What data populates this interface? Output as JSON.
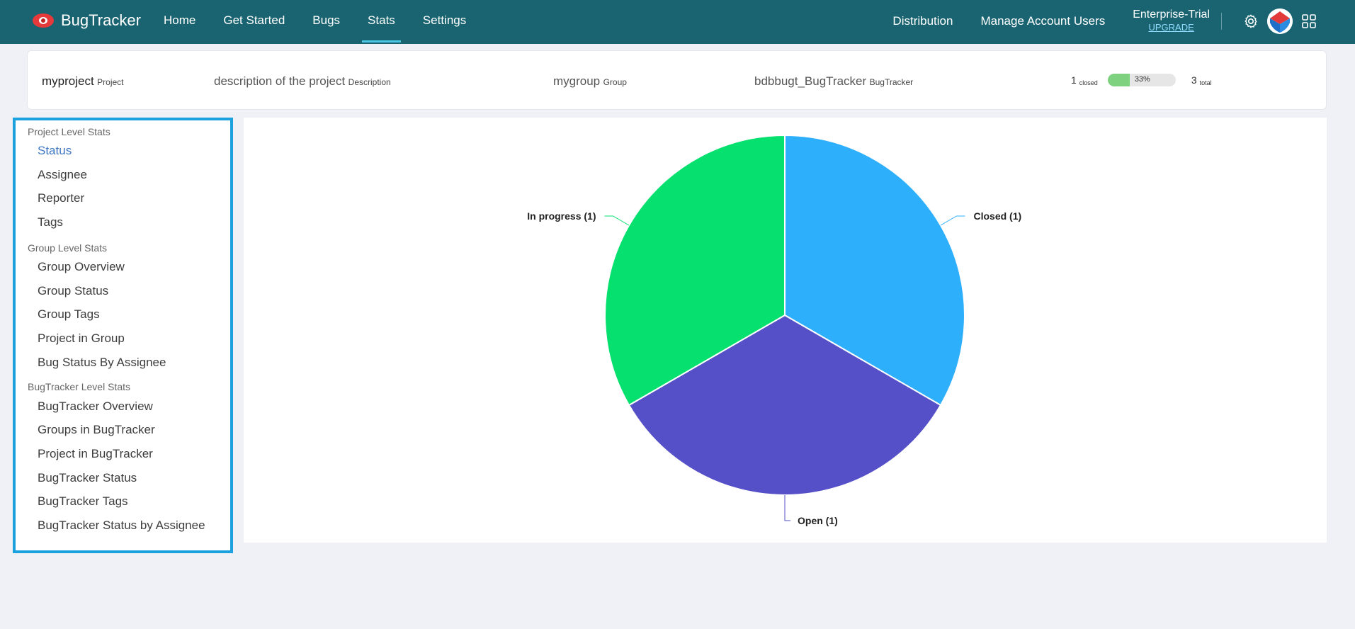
{
  "brand": {
    "name": "BugTracker"
  },
  "nav": {
    "items": [
      "Home",
      "Get Started",
      "Bugs",
      "Stats",
      "Settings"
    ],
    "active": "Stats"
  },
  "nav_right": {
    "distribution": "Distribution",
    "manage_users": "Manage Account Users",
    "plan_name": "Enterprise-Trial",
    "upgrade": "UPGRADE"
  },
  "project_info": {
    "project_name": "myproject",
    "project_label": "Project",
    "description": "description of the project",
    "description_label": "Description",
    "group": "mygroup",
    "group_label": "Group",
    "bugtracker": "bdbbugt_BugTracker",
    "bugtracker_label": "BugTracker",
    "closed_count": "1",
    "closed_label": "closed",
    "progress_percent": "33%",
    "progress_fraction": 0.33,
    "total_count": "3",
    "total_label": "total"
  },
  "sidebar": {
    "sections": [
      {
        "title": "Project Level Stats",
        "items": [
          "Status",
          "Assignee",
          "Reporter",
          "Tags"
        ]
      },
      {
        "title": "Group Level Stats",
        "items": [
          "Group Overview",
          "Group Status",
          "Group Tags",
          "Project in Group",
          "Bug Status By Assignee"
        ]
      },
      {
        "title": "BugTracker Level Stats",
        "items": [
          "BugTracker Overview",
          "Groups in BugTracker",
          "Project in BugTracker",
          "BugTracker Status",
          "BugTracker Tags",
          "BugTracker Status by Assignee"
        ]
      }
    ],
    "active_item": "Status"
  },
  "colors": {
    "topbar": "#1a6472",
    "accent_border": "#1ba1dd",
    "active_link": "#3e76c1"
  },
  "chart_data": {
    "type": "pie",
    "title": "",
    "slices": [
      {
        "label": "Closed",
        "value": 1,
        "display": "Closed (1)",
        "color": "#2eaffc"
      },
      {
        "label": "Open",
        "value": 1,
        "display": "Open (1)",
        "color": "#5550c7"
      },
      {
        "label": "In progress",
        "value": 1,
        "display": "In progress (1)",
        "color": "#05e06e"
      }
    ],
    "legend": "none"
  }
}
